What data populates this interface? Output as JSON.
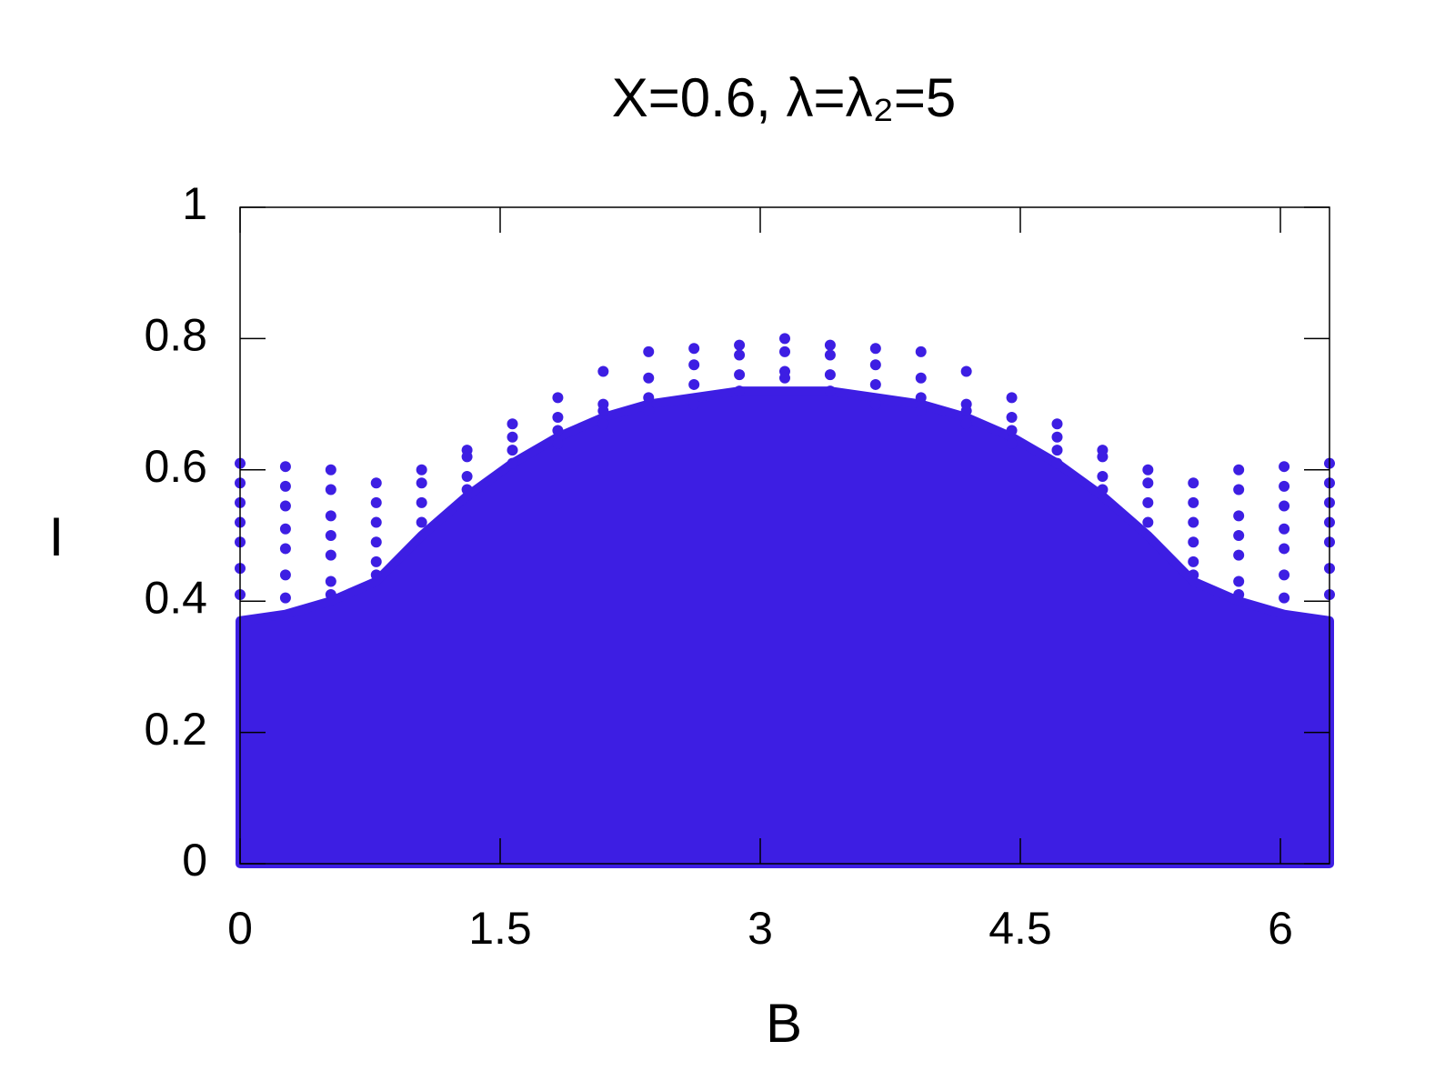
{
  "chart_data": {
    "type": "scatter",
    "title": "X=0.6, λ=λ₂=5",
    "xlabel": "B",
    "ylabel": "I",
    "xlim": [
      0,
      6.2832
    ],
    "ylim": [
      0,
      1
    ],
    "xticks": [
      0,
      1.5,
      3,
      4.5,
      6
    ],
    "yticks": [
      0,
      0.2,
      0.4,
      0.6,
      0.8,
      1
    ],
    "x": [
      0,
      0.2618,
      0.5236,
      0.7854,
      1.0472,
      1.309,
      1.5708,
      1.8326,
      2.0944,
      2.3562,
      2.618,
      2.8798,
      3.1416,
      3.4034,
      3.6652,
      3.927,
      4.1888,
      4.4506,
      4.7124,
      4.9742,
      5.236,
      5.4978,
      5.7596,
      6.0214,
      6.2832
    ],
    "series": [
      {
        "mode": "area",
        "color": "#3d1ee3",
        "values": [
          0.37,
          0.38,
          0.4,
          0.43,
          0.5,
          0.56,
          0.61,
          0.65,
          0.68,
          0.7,
          0.71,
          0.72,
          0.72,
          0.72,
          0.71,
          0.7,
          0.68,
          0.65,
          0.61,
          0.56,
          0.5,
          0.43,
          0.4,
          0.38,
          0.37
        ]
      },
      {
        "mode": "points",
        "color": "#3d1ee3",
        "values": [
          0.61,
          0.605,
          0.6,
          0.58,
          0.6,
          0.63,
          0.67,
          0.71,
          0.75,
          0.78,
          0.785,
          0.79,
          0.8,
          0.79,
          0.785,
          0.78,
          0.75,
          0.71,
          0.67,
          0.63,
          0.6,
          0.58,
          0.6,
          0.605,
          0.61
        ]
      },
      {
        "mode": "points",
        "color": "#3d1ee3",
        "values": [
          0.58,
          0.575,
          0.57,
          0.55,
          0.58,
          0.62,
          0.65,
          0.68,
          0.7,
          0.74,
          0.76,
          0.775,
          0.78,
          0.775,
          0.76,
          0.74,
          0.7,
          0.68,
          0.65,
          0.62,
          0.58,
          0.55,
          0.57,
          0.575,
          0.58
        ]
      },
      {
        "mode": "points",
        "color": "#3d1ee3",
        "values": [
          0.55,
          0.545,
          0.53,
          0.52,
          0.55,
          0.59,
          0.63,
          0.66,
          0.69,
          0.71,
          0.73,
          0.745,
          0.75,
          0.745,
          0.73,
          0.71,
          0.69,
          0.66,
          0.63,
          0.59,
          0.55,
          0.52,
          0.53,
          0.545,
          0.55
        ]
      },
      {
        "mode": "points",
        "color": "#3d1ee3",
        "values": [
          0.52,
          0.51,
          0.5,
          0.49,
          0.52,
          0.57,
          0.61,
          0.64,
          0.67,
          0.69,
          0.7,
          0.72,
          0.74,
          0.72,
          0.7,
          0.69,
          0.67,
          0.64,
          0.61,
          0.57,
          0.52,
          0.49,
          0.5,
          0.51,
          0.52
        ]
      },
      {
        "mode": "points",
        "color": "#3d1ee3",
        "values": [
          0.49,
          0.48,
          0.47,
          0.46,
          null,
          null,
          null,
          null,
          null,
          null,
          null,
          null,
          null,
          null,
          null,
          null,
          null,
          null,
          null,
          null,
          null,
          0.46,
          0.47,
          0.48,
          0.49
        ]
      },
      {
        "mode": "points",
        "color": "#3d1ee3",
        "values": [
          0.45,
          0.44,
          0.43,
          0.44,
          null,
          null,
          null,
          null,
          null,
          null,
          null,
          null,
          null,
          null,
          null,
          null,
          null,
          null,
          null,
          null,
          null,
          0.44,
          0.43,
          0.44,
          0.45
        ]
      },
      {
        "mode": "points",
        "color": "#3d1ee3",
        "values": [
          0.41,
          0.405,
          0.41,
          null,
          null,
          null,
          null,
          null,
          null,
          null,
          null,
          null,
          null,
          null,
          null,
          null,
          null,
          null,
          null,
          null,
          null,
          null,
          0.41,
          0.405,
          0.41
        ]
      }
    ]
  }
}
